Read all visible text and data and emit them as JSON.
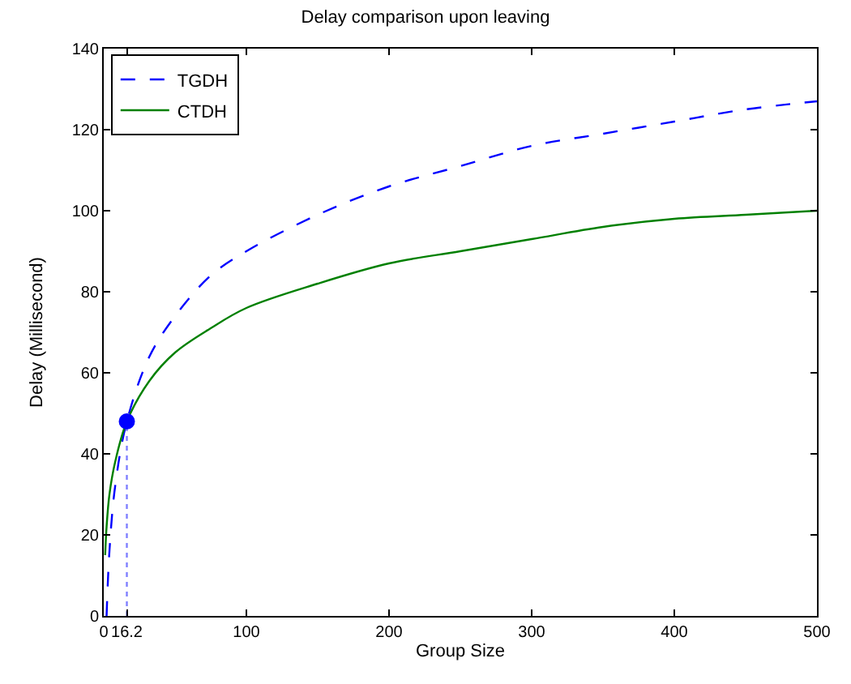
{
  "chart_data": {
    "type": "line",
    "title": "Delay comparison upon leaving",
    "xlabel": "Group Size",
    "ylabel": "Delay (Millisecond)",
    "xlim": [
      0,
      500
    ],
    "ylim": [
      0,
      140
    ],
    "xticks": [
      0,
      16.2,
      100,
      200,
      300,
      400,
      500
    ],
    "yticks": [
      0,
      20,
      40,
      60,
      80,
      100,
      120,
      140
    ],
    "legend": "top left",
    "series": [
      {
        "name": "TGDH",
        "color": "#0000ff",
        "line_style": "dashed",
        "x": [
          2,
          4,
          8,
          16.2,
          32,
          50,
          75,
          100,
          150,
          200,
          250,
          300,
          350,
          400,
          450,
          500
        ],
        "values": [
          0,
          16,
          32,
          48,
          64,
          74,
          84,
          90,
          99,
          106,
          111,
          116,
          119,
          122,
          125,
          127
        ]
      },
      {
        "name": "CTDH",
        "color": "#008000",
        "line_style": "solid",
        "x": [
          1,
          2,
          4,
          8,
          16.2,
          32,
          50,
          75,
          100,
          150,
          200,
          250,
          300,
          350,
          400,
          450,
          500
        ],
        "values": [
          15,
          22,
          30,
          38,
          48,
          58,
          65,
          71,
          76,
          82,
          87,
          90,
          93,
          96,
          98,
          99,
          100
        ]
      },
      {
        "type": "line",
        "color": "#8080ff",
        "line_style": "dotted",
        "x": [
          16.2,
          16.2
        ],
        "values": [
          0,
          48
        ]
      },
      {
        "type": "scatter",
        "color": "#0000ff",
        "marker": "circle",
        "x": [
          16.2
        ],
        "values": [
          48
        ]
      }
    ]
  }
}
